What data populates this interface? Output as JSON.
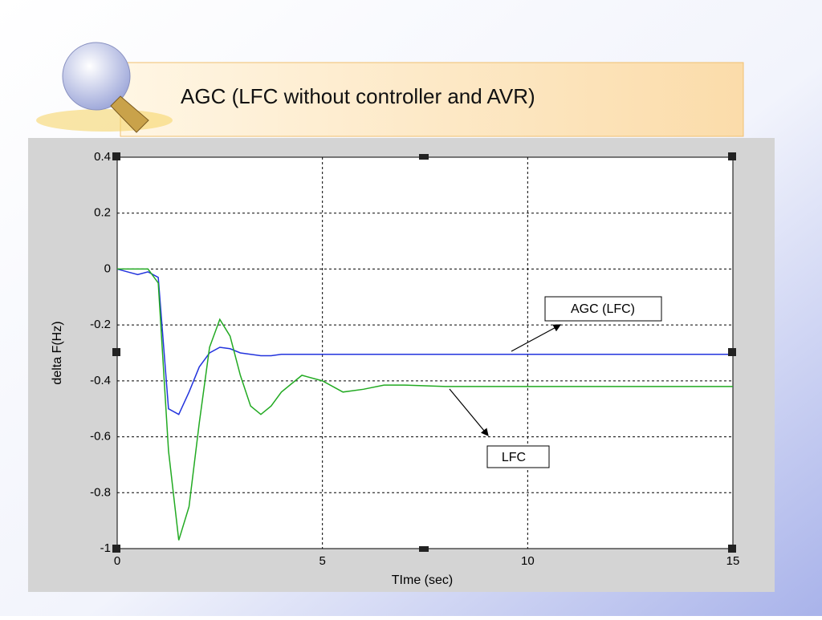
{
  "chart_data": {
    "type": "line",
    "title": "AGC (LFC without controller and AVR)",
    "xlabel": "TIme (sec)",
    "ylabel": "delta F(Hz)",
    "x": [
      0,
      0.25,
      0.5,
      0.75,
      1,
      1.25,
      1.5,
      1.75,
      2,
      2.25,
      2.5,
      2.75,
      3,
      3.25,
      3.5,
      3.75,
      4,
      4.5,
      5,
      5.5,
      6,
      6.5,
      7,
      8,
      10,
      15
    ],
    "series": [
      {
        "name": "AGC (LFC)",
        "color": "#2233dd",
        "values": [
          0,
          -0.01,
          -0.02,
          -0.01,
          -0.03,
          -0.5,
          -0.52,
          -0.44,
          -0.35,
          -0.3,
          -0.28,
          -0.285,
          -0.3,
          -0.305,
          -0.31,
          -0.31,
          -0.305,
          -0.305,
          -0.305,
          -0.305,
          -0.305,
          -0.305,
          -0.305,
          -0.305,
          -0.305,
          -0.305
        ]
      },
      {
        "name": "LFC",
        "color": "#22aa22",
        "values": [
          0,
          0,
          0,
          0,
          -0.05,
          -0.65,
          -0.97,
          -0.85,
          -0.55,
          -0.28,
          -0.18,
          -0.24,
          -0.38,
          -0.49,
          -0.52,
          -0.49,
          -0.44,
          -0.38,
          -0.4,
          -0.44,
          -0.43,
          -0.415,
          -0.415,
          -0.42,
          -0.42,
          -0.42
        ]
      }
    ],
    "xlim": [
      0,
      15
    ],
    "ylim": [
      -1,
      0.4
    ],
    "xticks": [
      0,
      5,
      10,
      15
    ],
    "yticks": [
      0.4,
      0.2,
      0,
      -0.2,
      -0.4,
      -0.6,
      -0.8,
      -1
    ],
    "grid": true
  }
}
